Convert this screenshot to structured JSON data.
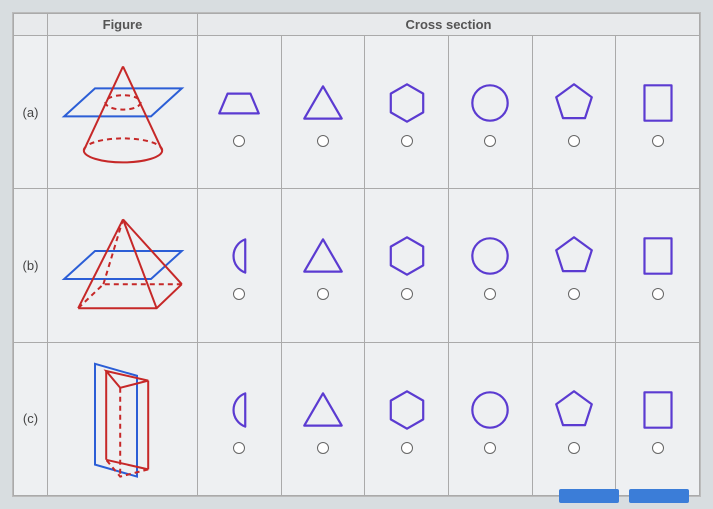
{
  "headers": {
    "figure": "Figure",
    "cross": "Cross section"
  },
  "rows": [
    {
      "label": "(a)",
      "figure": "cone"
    },
    {
      "label": "(b)",
      "figure": "sq_pyramid"
    },
    {
      "label": "(c)",
      "figure": "tri_prism"
    }
  ],
  "options_by_row": [
    [
      "trapezoid",
      "triangle",
      "hexagon",
      "circle",
      "pentagon",
      "rectangle"
    ],
    [
      "semicircle",
      "triangle",
      "hexagon",
      "circle",
      "pentagon",
      "rectangle"
    ],
    [
      "semicircle",
      "triangle",
      "hexagon",
      "circle",
      "pentagon",
      "rectangle"
    ]
  ],
  "style": {
    "shape_stroke": "#5b3bd1",
    "shape_stroke_width": 2.2,
    "solid_red": "#c62828",
    "plane_blue": "#2b5ed6",
    "dash": "5 4",
    "bg": "#eef0f2",
    "icon_size": 52,
    "figure_w": 140,
    "figure_h": 120
  }
}
